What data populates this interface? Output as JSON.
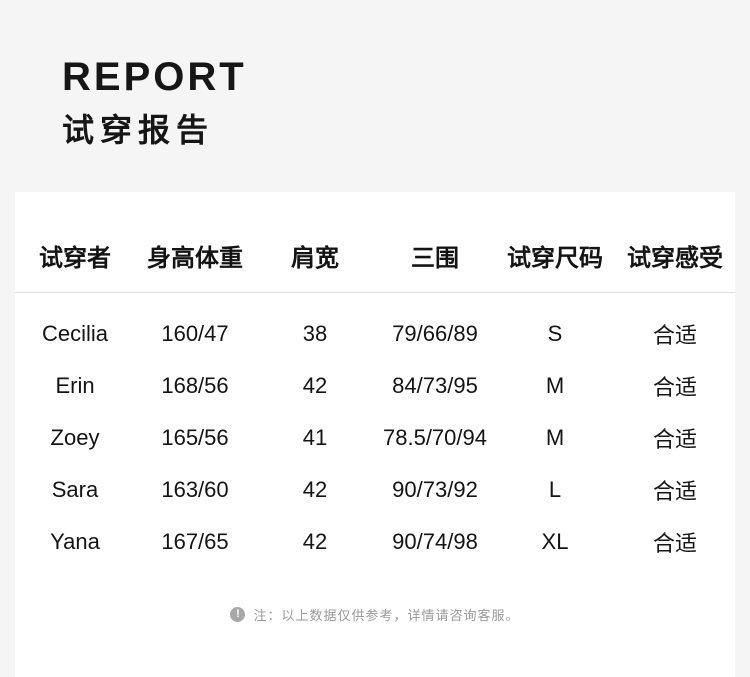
{
  "colors": {
    "page_background": "#f5f5f6",
    "card_background": "#ffffff",
    "text_primary": "#161616",
    "divider": "#dcdcdc",
    "note_text": "#999999",
    "note_icon_background": "#a8a8a8"
  },
  "title": {
    "en": "REPORT",
    "zh": "试穿报告"
  },
  "table": {
    "headers": [
      "试穿者",
      "身高体重",
      "肩宽",
      "三围",
      "试穿尺码",
      "试穿感受"
    ],
    "rows": [
      [
        "Cecilia",
        "160/47",
        "38",
        "79/66/89",
        "S",
        "合适"
      ],
      [
        "Erin",
        "168/56",
        "42",
        "84/73/95",
        "M",
        "合适"
      ],
      [
        "Zoey",
        "165/56",
        "41",
        "78.5/70/94",
        "M",
        "合适"
      ],
      [
        "Sara",
        "163/60",
        "42",
        "90/73/92",
        "L",
        "合适"
      ],
      [
        "Yana",
        "167/65",
        "42",
        "90/74/98",
        "XL",
        "合适"
      ]
    ]
  },
  "footnote": {
    "icon": "exclamation-circle-icon",
    "icon_glyph": "!",
    "text": "注：以上数据仅供参考，详情请咨询客服。"
  }
}
